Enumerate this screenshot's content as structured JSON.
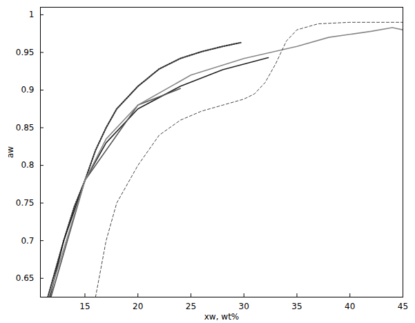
{
  "chart_data": {
    "type": "line",
    "x_label": "xw, wt%",
    "y_label": "aw",
    "xlim": [
      10.8,
      45
    ],
    "ylim": [
      0.625,
      1.01
    ],
    "xticks": [
      15,
      20,
      25,
      30,
      35,
      40,
      45
    ],
    "yticks": [
      0.65,
      0.7,
      0.75,
      0.8,
      0.85,
      0.9,
      0.95,
      1
    ],
    "grid": false,
    "series": [
      {
        "color": "#333333",
        "line_style": "dotted",
        "x": [
          11.5,
          12,
          13,
          14,
          15,
          16,
          17,
          18,
          20,
          22,
          24,
          26,
          28,
          29.7
        ],
        "values": [
          0.625,
          0.65,
          0.7,
          0.745,
          0.78,
          0.82,
          0.85,
          0.875,
          0.905,
          0.928,
          0.942,
          0.951,
          0.958,
          0.963
        ]
      },
      {
        "color": "#222222",
        "line_style": "solid",
        "x": [
          11.7,
          13,
          15,
          17,
          20,
          24,
          28,
          32.3
        ],
        "values": [
          0.625,
          0.7,
          0.78,
          0.83,
          0.875,
          0.905,
          0.927,
          0.943
        ]
      },
      {
        "color": "#555555",
        "line_style": "solid",
        "x": [
          11.8,
          15,
          20,
          24
        ],
        "values": [
          0.625,
          0.78,
          0.88,
          0.902
        ]
      },
      {
        "color": "#888888",
        "line_style": "solid",
        "x": [
          11.6,
          15,
          17,
          20,
          25,
          30,
          35,
          38,
          42,
          44,
          45
        ],
        "values": [
          0.625,
          0.78,
          0.835,
          0.88,
          0.92,
          0.942,
          0.958,
          0.97,
          0.978,
          0.983,
          0.98
        ]
      },
      {
        "color": "#444444",
        "line_style": "dashed",
        "x": [
          16,
          17,
          18,
          20,
          22,
          24,
          26,
          28,
          30,
          31,
          32,
          33,
          34,
          35,
          37,
          40,
          45
        ],
        "values": [
          0.625,
          0.7,
          0.75,
          0.8,
          0.84,
          0.86,
          0.872,
          0.88,
          0.888,
          0.895,
          0.91,
          0.935,
          0.965,
          0.98,
          0.988,
          0.99,
          0.99
        ]
      }
    ]
  }
}
